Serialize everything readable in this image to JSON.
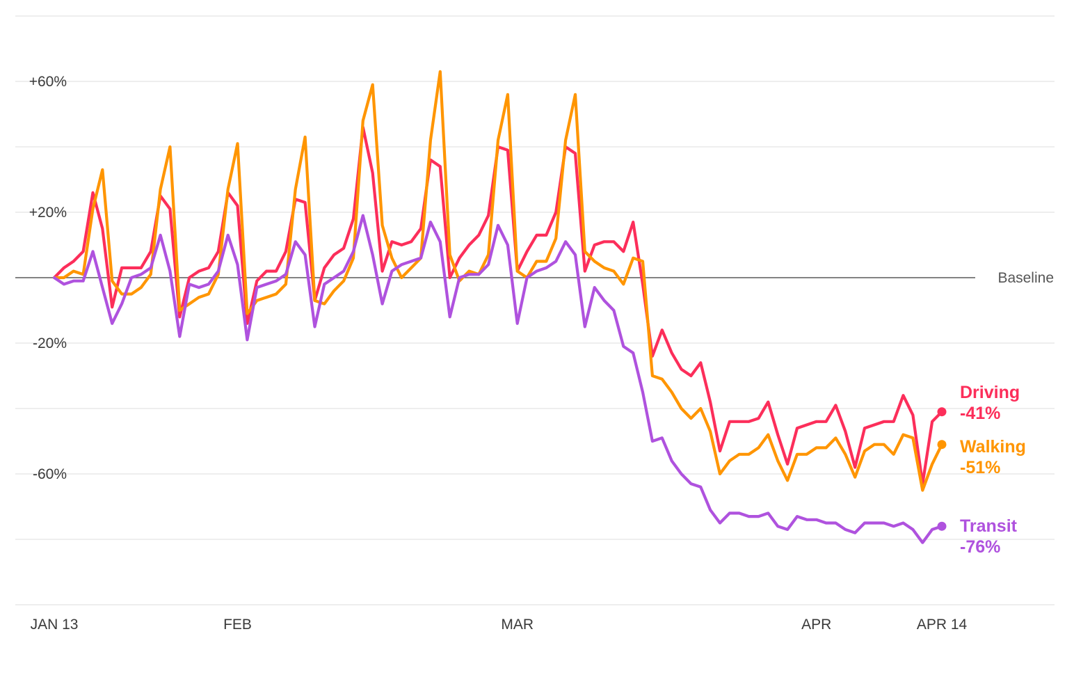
{
  "chart_data": {
    "type": "line",
    "x_ticks": [
      {
        "label": "JAN 13",
        "day": 0
      },
      {
        "label": "FEB",
        "day": 19
      },
      {
        "label": "MAR",
        "day": 48
      },
      {
        "label": "APR",
        "day": 79
      },
      {
        "label": "APR 14",
        "day": 92
      }
    ],
    "y_ticks": [
      {
        "label": "+60%",
        "value": 60
      },
      {
        "label": "+20%",
        "value": 20
      },
      {
        "label": "-20%",
        "value": -20
      },
      {
        "label": "-60%",
        "value": -60
      }
    ],
    "ylim": [
      -100,
      80
    ],
    "x_range": [
      "JAN 13",
      "APR 14"
    ],
    "grid": true,
    "baseline": {
      "label": "Baseline",
      "value": 0
    },
    "series": [
      {
        "name": "Driving",
        "end_value": "-41%",
        "color": "#fc2e5a",
        "values": [
          0,
          3,
          5,
          8,
          26,
          15,
          -9,
          3,
          3,
          3,
          8,
          25,
          21,
          -12,
          0,
          2,
          3,
          8,
          26,
          22,
          -14,
          -1,
          2,
          2,
          8,
          24,
          23,
          -7,
          3,
          7,
          9,
          18,
          46,
          32,
          2,
          11,
          10,
          11,
          15,
          36,
          34,
          0,
          6,
          10,
          13,
          19,
          40,
          39,
          2,
          8,
          13,
          13,
          20,
          40,
          38,
          2,
          10,
          11,
          11,
          8,
          17,
          -2,
          -24,
          -16,
          -23,
          -28,
          -30,
          -26,
          -38,
          -53,
          -44,
          -44,
          -44,
          -43,
          -38,
          -48,
          -57,
          -46,
          -45,
          -44,
          -44,
          -39,
          -47,
          -58,
          -46,
          -45,
          -44,
          -44,
          -36,
          -42,
          -63,
          -44,
          -41
        ]
      },
      {
        "name": "Walking",
        "end_value": "-51%",
        "color": "#ff9500",
        "values": [
          0,
          0,
          2,
          1,
          21,
          33,
          -1,
          -5,
          -5,
          -3,
          1,
          27,
          40,
          -10,
          -8,
          -6,
          -5,
          1,
          27,
          41,
          -11,
          -7,
          -6,
          -5,
          -2,
          27,
          43,
          -7,
          -8,
          -4,
          -1,
          6,
          48,
          59,
          16,
          6,
          0,
          3,
          6,
          42,
          63,
          7,
          -1,
          2,
          1,
          7,
          42,
          56,
          2,
          0,
          5,
          5,
          12,
          42,
          56,
          8,
          5,
          3,
          2,
          -2,
          6,
          5,
          -30,
          -31,
          -35,
          -40,
          -43,
          -40,
          -47,
          -60,
          -56,
          -54,
          -54,
          -52,
          -48,
          -56,
          -62,
          -54,
          -54,
          -52,
          -52,
          -49,
          -54,
          -61,
          -53,
          -51,
          -51,
          -54,
          -48,
          -49,
          -65,
          -57,
          -51
        ]
      },
      {
        "name": "Transit",
        "end_value": "-76%",
        "color": "#af52de",
        "values": [
          0,
          -2,
          -1,
          -1,
          8,
          -3,
          -14,
          -8,
          0,
          1,
          3,
          13,
          2,
          -18,
          -2,
          -3,
          -2,
          2,
          13,
          4,
          -19,
          -3,
          -2,
          -1,
          1,
          11,
          7,
          -15,
          -2,
          0,
          2,
          8,
          19,
          7,
          -8,
          2,
          4,
          5,
          6,
          17,
          11,
          -12,
          0,
          1,
          1,
          4,
          16,
          10,
          -14,
          0,
          2,
          3,
          5,
          11,
          7,
          -15,
          -3,
          -7,
          -10,
          -21,
          -23,
          -35,
          -50,
          -49,
          -56,
          -60,
          -63,
          -64,
          -71,
          -75,
          -72,
          -72,
          -73,
          -73,
          -72,
          -76,
          -77,
          -73,
          -74,
          -74,
          -75,
          -75,
          -77,
          -78,
          -75,
          -75,
          -75,
          -76,
          -75,
          -77,
          -81,
          -77,
          -76
        ]
      }
    ]
  }
}
